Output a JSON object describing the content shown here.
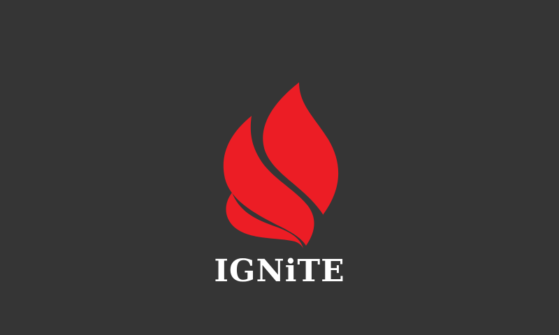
{
  "brand": {
    "name": "IGNiTE",
    "flame_icon": "flame-icon",
    "colors": {
      "background": "#353535",
      "flame": "#ec1d25",
      "text": "#ffffff"
    }
  }
}
